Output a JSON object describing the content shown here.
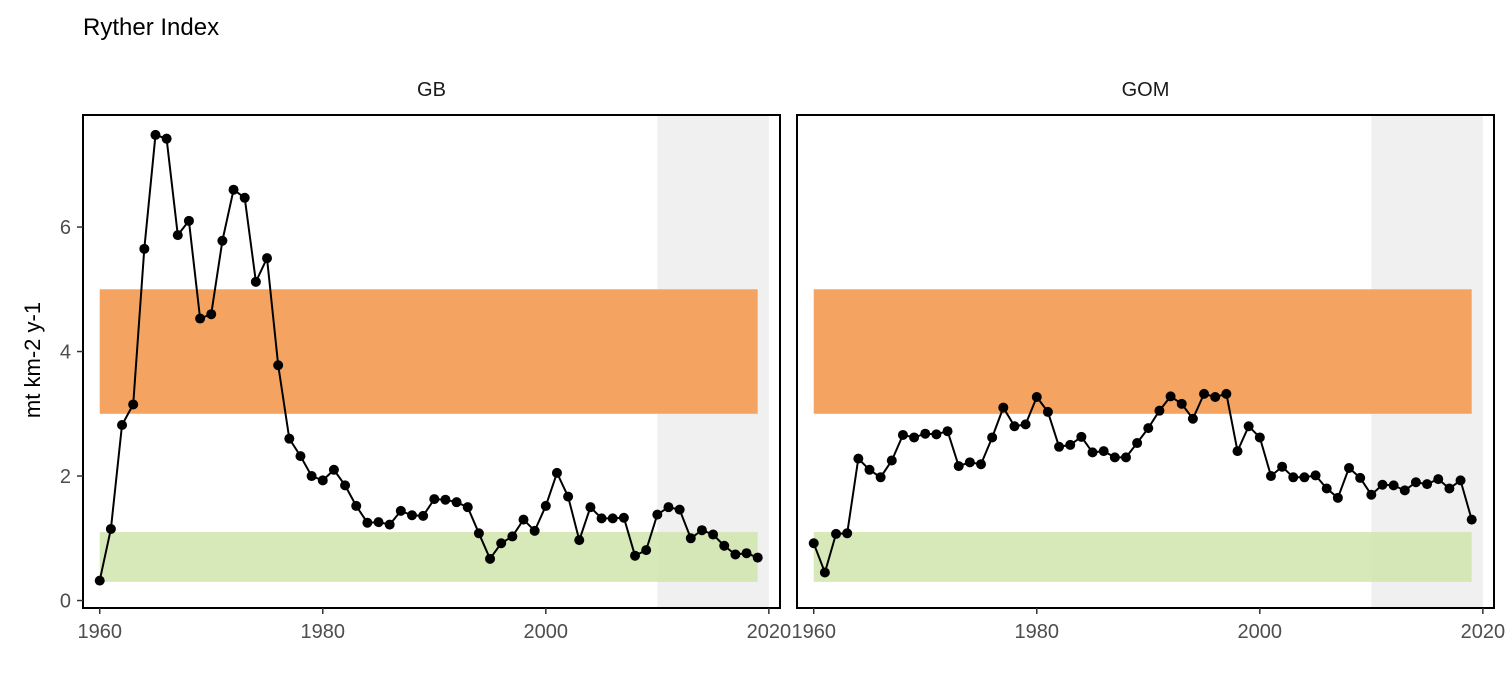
{
  "chart_data": {
    "type": "line",
    "title": "Ryther Index",
    "ylabel": "mt km-2 y-1",
    "xlabel": "",
    "xlim": [
      1958.5,
      2021
    ],
    "ylim": [
      -0.12,
      7.8
    ],
    "x_ticks": [
      1960,
      1980,
      2000,
      2020
    ],
    "y_ticks": [
      0,
      2,
      4,
      6
    ],
    "grid": false,
    "colors": {
      "high_band": "#f4a460",
      "low_band": "#d1e5ad",
      "recent_shade": "#f0f0f0",
      "line": "#000000",
      "frame": "#000000"
    },
    "reference_bands": [
      {
        "name": "high",
        "x_start": 1960,
        "x_end": 2019,
        "y_min": 3,
        "y_max": 5
      },
      {
        "name": "low",
        "x_start": 1960,
        "x_end": 2019,
        "y_min": 0.3,
        "y_max": 1.1
      }
    ],
    "recent_period": [
      2010,
      2020
    ],
    "panels": [
      {
        "name": "GB",
        "series": [
          {
            "x": [
              1960,
              1961,
              1962,
              1963,
              1964,
              1965,
              1966,
              1967,
              1968,
              1969,
              1970,
              1971,
              1972,
              1973,
              1974,
              1975,
              1976,
              1977,
              1978,
              1979,
              1980,
              1981,
              1982,
              1983,
              1984,
              1985,
              1986,
              1987,
              1988,
              1989,
              1990,
              1991,
              1992,
              1993,
              1994,
              1995,
              1996,
              1997,
              1998,
              1999,
              2000,
              2001,
              2002,
              2003,
              2004,
              2005,
              2006,
              2007,
              2008,
              2009,
              2010,
              2011,
              2012,
              2013,
              2014,
              2015,
              2016,
              2017,
              2018,
              2019
            ],
            "values": [
              0.32,
              1.15,
              2.82,
              3.15,
              5.65,
              7.48,
              7.42,
              5.87,
              6.1,
              4.53,
              4.6,
              5.78,
              6.6,
              6.47,
              5.12,
              5.5,
              3.78,
              2.6,
              2.32,
              2.0,
              1.93,
              2.1,
              1.85,
              1.52,
              1.25,
              1.26,
              1.22,
              1.44,
              1.37,
              1.36,
              1.63,
              1.62,
              1.58,
              1.5,
              1.08,
              0.67,
              0.92,
              1.03,
              1.3,
              1.12,
              1.52,
              2.05,
              1.67,
              0.97,
              1.5,
              1.32,
              1.32,
              1.33,
              0.72,
              0.81,
              1.38,
              1.5,
              1.46,
              1.0,
              1.13,
              1.06,
              0.88,
              0.74,
              0.76,
              0.69
            ]
          }
        ]
      },
      {
        "name": "GOM",
        "series": [
          {
            "x": [
              1960,
              1961,
              1962,
              1963,
              1964,
              1965,
              1966,
              1967,
              1968,
              1969,
              1970,
              1971,
              1972,
              1973,
              1974,
              1975,
              1976,
              1977,
              1978,
              1979,
              1980,
              1981,
              1982,
              1983,
              1984,
              1985,
              1986,
              1987,
              1988,
              1989,
              1990,
              1991,
              1992,
              1993,
              1994,
              1995,
              1996,
              1997,
              1998,
              1999,
              2000,
              2001,
              2002,
              2003,
              2004,
              2005,
              2006,
              2007,
              2008,
              2009,
              2010,
              2011,
              2012,
              2013,
              2014,
              2015,
              2016,
              2017,
              2018,
              2019
            ],
            "values": [
              0.92,
              0.45,
              1.07,
              1.08,
              2.28,
              2.1,
              1.98,
              2.25,
              2.66,
              2.62,
              2.68,
              2.67,
              2.72,
              2.16,
              2.22,
              2.19,
              2.62,
              3.1,
              2.8,
              2.83,
              3.27,
              3.03,
              2.47,
              2.5,
              2.63,
              2.38,
              2.4,
              2.3,
              2.3,
              2.53,
              2.77,
              3.05,
              3.28,
              3.16,
              2.92,
              3.32,
              3.27,
              3.32,
              2.4,
              2.8,
              2.62,
              2.0,
              2.15,
              1.98,
              1.98,
              2.01,
              1.8,
              1.65,
              2.13,
              1.97,
              1.7,
              1.86,
              1.85,
              1.77,
              1.9,
              1.87,
              1.95,
              1.8,
              1.93,
              1.3
            ]
          }
        ]
      }
    ]
  }
}
